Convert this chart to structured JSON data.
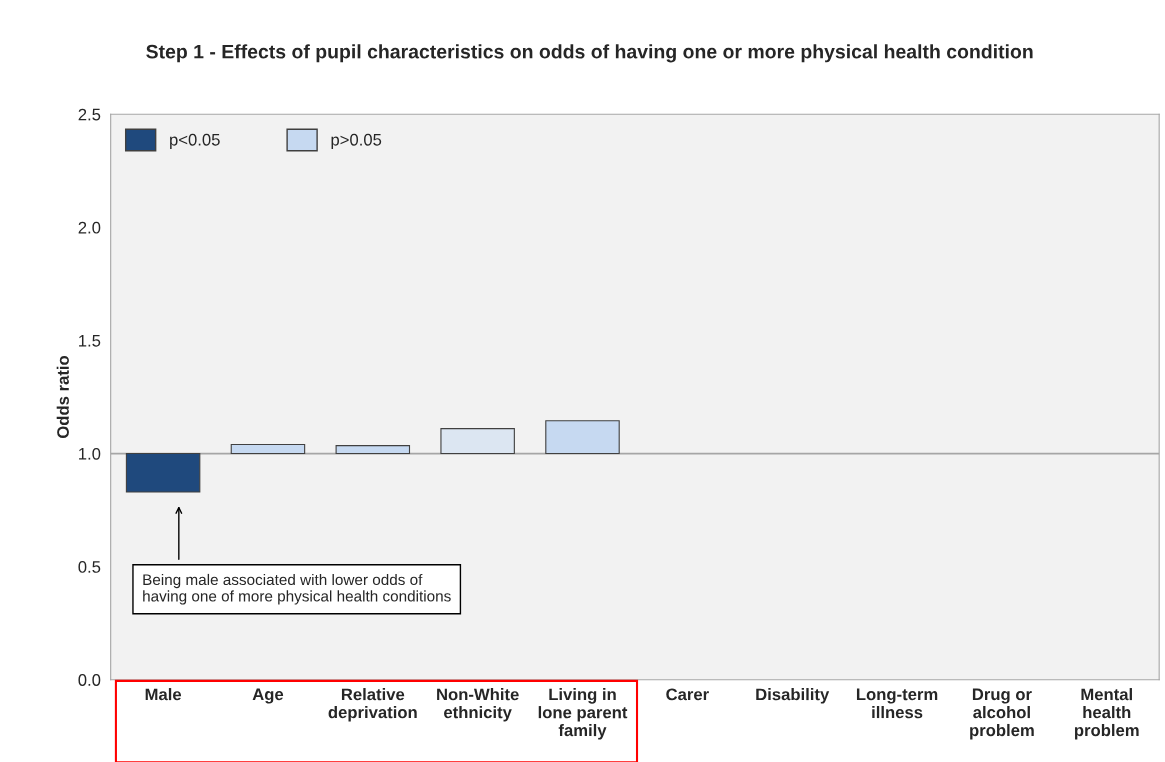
{
  "chart_data": {
    "type": "bar",
    "title": "Step 1 - Effects of pupil characteristics on odds of having one or more physical health condition",
    "ylabel": "Odds ratio",
    "categories": [
      "Male",
      "Age",
      "Relative\ndeprivation",
      "Non-White\nethnicity",
      "Living in\nlone parent\nfamily",
      "Carer",
      "Disability",
      "Long-term\nillness",
      "Drug or\nalcohol\nproblem",
      "Mental\nhealth\nproblem"
    ],
    "series": [
      {
        "name": "p<0.05",
        "color": "#1f497d",
        "base": [
          1,
          null,
          null,
          null,
          null,
          null,
          null,
          null,
          null,
          null
        ],
        "values": [
          -0.17,
          null,
          null,
          null,
          null,
          null,
          null,
          null,
          null,
          null
        ]
      },
      {
        "name": "p>0.05",
        "color": "#c6d9f1",
        "base": [
          null,
          1,
          1,
          1,
          1,
          null,
          null,
          null,
          null,
          null
        ],
        "colors": [
          "#c6d9f1",
          "#c6d9f1",
          "#c6d9f1",
          "#dce6f2",
          "#c6d9f1",
          "#c6d9f1",
          "#c6d9f1",
          "#c6d9f1",
          "#c6d9f1",
          "#c6d9f1"
        ],
        "values": [
          null,
          0.04,
          0.035,
          0.11,
          0.145,
          null,
          null,
          null,
          null,
          null
        ]
      }
    ],
    "ylim": [
      0,
      2.5
    ],
    "yticks": [
      {
        "value": 0,
        "label": "0.0"
      },
      {
        "value": 0.5,
        "label": "0.5"
      },
      {
        "value": 1,
        "label": "1.0"
      },
      {
        "value": 1.5,
        "label": "1.5"
      },
      {
        "value": 2,
        "label": "2.0"
      },
      {
        "value": 2.5,
        "label": "2.5"
      }
    ],
    "legend": "top left",
    "annotations": [
      "Being male associated with lower odds of\nhaving one of more physical health conditions"
    ]
  }
}
